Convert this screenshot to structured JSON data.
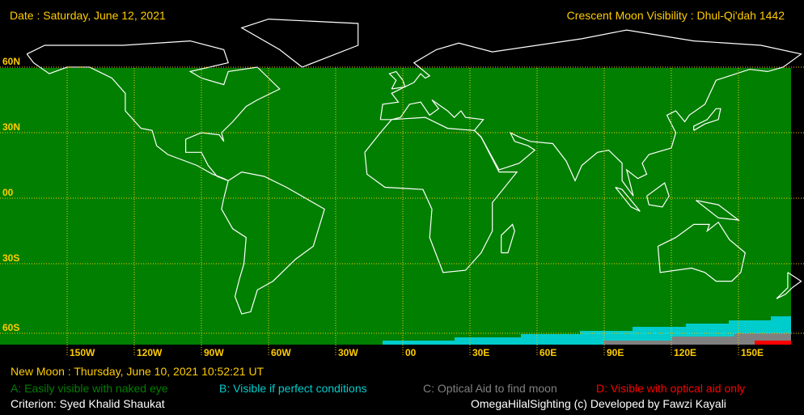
{
  "header": {
    "date": "Date : Saturday, June 12, 2021",
    "title": "Crescent Moon Visibility : Dhul-Qi'dah  1442"
  },
  "map": {
    "lat_labels": [
      "60N",
      "30N",
      "00",
      "30S",
      "60S"
    ],
    "lon_labels": [
      "150W",
      "120W",
      "90W",
      "60W",
      "30W",
      "00",
      "30E",
      "60E",
      "90E",
      "120E",
      "150E"
    ],
    "colors": {
      "ocean_land": "#007f00",
      "grid": "#ffcc00",
      "coast": "#ffffff",
      "zone_b": "#00cccc",
      "zone_c": "#808080",
      "zone_d": "#ff0000"
    }
  },
  "footer": {
    "new_moon": "New Moon : Thursday, June 10, 2021  10:52:21  UT",
    "legend": [
      {
        "label": "A: Easily visible with naked eye",
        "color": "#008000"
      },
      {
        "label": "B: Visible if perfect conditions",
        "color": "#00cccc"
      },
      {
        "label": "C: Optical Aid to find moon",
        "color": "#808080"
      },
      {
        "label": "D: Visible with optical aid only",
        "color": "#ff0000"
      }
    ],
    "criterion": "Criterion: Syed Khalid Shaukat",
    "credit": "OmegaHilalSighting  (c)  Developed by Fawzi Kayali"
  }
}
